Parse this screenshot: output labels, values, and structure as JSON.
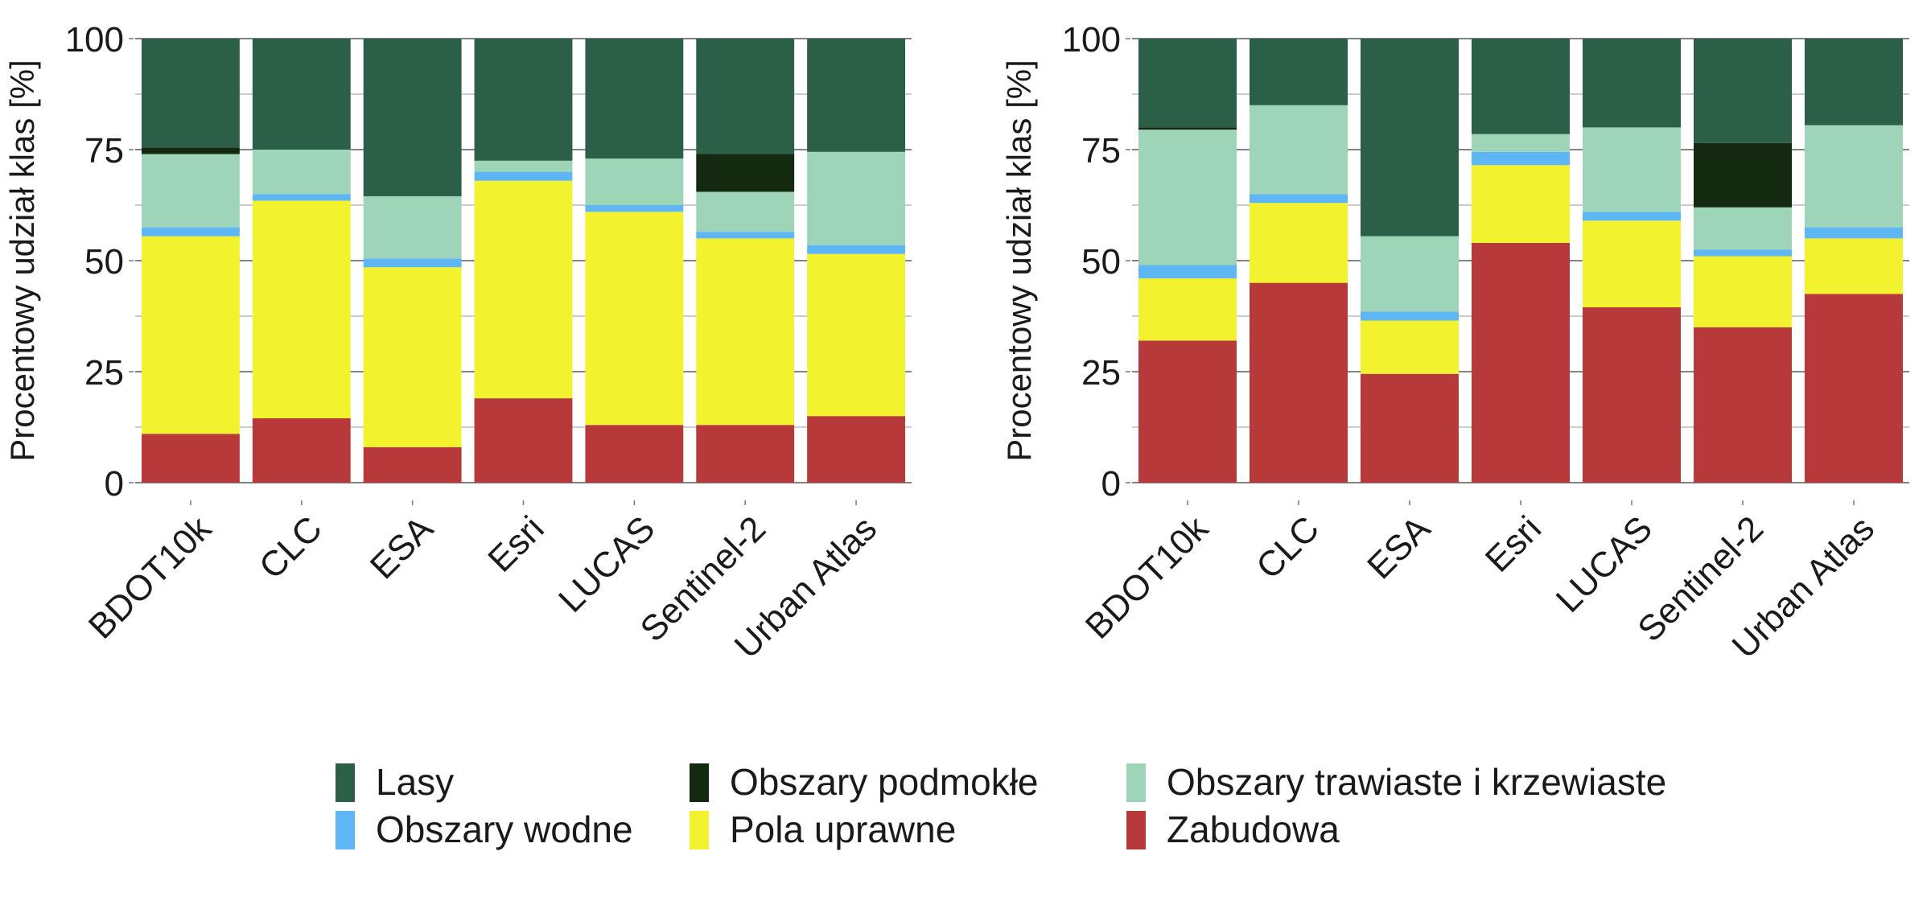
{
  "chart_data": [
    {
      "type": "bar",
      "stacked": true,
      "categories": [
        "BDOT10k",
        "CLC",
        "ESA",
        "Esri",
        "LUCAS",
        "Sentinel-2",
        "Urban Atlas"
      ],
      "ylabel": "Procentowy udział klas [%]",
      "ylim": [
        0,
        100
      ],
      "yticks": [
        "0",
        "25",
        "50",
        "75",
        "100"
      ],
      "grid": true,
      "series": [
        {
          "name": "Zabudowa",
          "values": [
            11,
            14.5,
            8,
            19,
            13,
            13,
            15
          ]
        },
        {
          "name": "Pola uprawne",
          "values": [
            44.5,
            49,
            40.5,
            49,
            48,
            42,
            36.5
          ]
        },
        {
          "name": "Obszary wodne",
          "values": [
            2,
            1.5,
            2,
            2,
            1.5,
            1.5,
            2
          ]
        },
        {
          "name": "Obszary trawiaste i krzewiaste",
          "values": [
            16.5,
            10,
            14,
            2.5,
            10.5,
            9,
            21
          ]
        },
        {
          "name": "Obszary podmokłe",
          "values": [
            1.5,
            0,
            0,
            0,
            0,
            8.5,
            0
          ]
        },
        {
          "name": "Lasy",
          "values": [
            24.5,
            25,
            35.5,
            27.5,
            27,
            26,
            25.5
          ]
        }
      ]
    },
    {
      "type": "bar",
      "stacked": true,
      "categories": [
        "BDOT10k",
        "CLC",
        "ESA",
        "Esri",
        "LUCAS",
        "Sentinel-2",
        "Urban Atlas"
      ],
      "ylabel": "Procentowy udział klas [%]",
      "ylim": [
        0,
        100
      ],
      "yticks": [
        "0",
        "25",
        "50",
        "75",
        "100"
      ],
      "grid": true,
      "series": [
        {
          "name": "Zabudowa",
          "values": [
            32,
            45,
            24.5,
            54,
            39.5,
            35,
            42.5
          ]
        },
        {
          "name": "Pola uprawne",
          "values": [
            14,
            18,
            12,
            17.5,
            19.5,
            16,
            12.5
          ]
        },
        {
          "name": "Obszary wodne",
          "values": [
            3,
            2,
            2,
            3,
            2,
            1.5,
            2.5
          ]
        },
        {
          "name": "Obszary trawiaste i krzewiaste",
          "values": [
            30.5,
            20,
            17,
            4,
            19,
            9.5,
            23
          ]
        },
        {
          "name": "Obszary podmokłe",
          "values": [
            0.5,
            0,
            0,
            0,
            0,
            14.5,
            0
          ]
        },
        {
          "name": "Lasy",
          "values": [
            20,
            15,
            44.5,
            21.5,
            20,
            23.5,
            19.5
          ]
        }
      ]
    }
  ],
  "colors": {
    "Lasy": "#2c5f48",
    "Obszary wodne": "#5fb6f5",
    "Obszary podmokłe": "#132a10",
    "Pola uprawne": "#f2f22e",
    "Obszary trawiaste i krzewiaste": "#9ed4b8",
    "Zabudowa": "#b8393a"
  },
  "legend": [
    {
      "name": "Lasy"
    },
    {
      "name": "Obszary wodne"
    },
    {
      "name": "Obszary podmokłe"
    },
    {
      "name": "Pola uprawne"
    },
    {
      "name": "Obszary trawiaste i krzewiaste"
    },
    {
      "name": "Zabudowa"
    }
  ]
}
